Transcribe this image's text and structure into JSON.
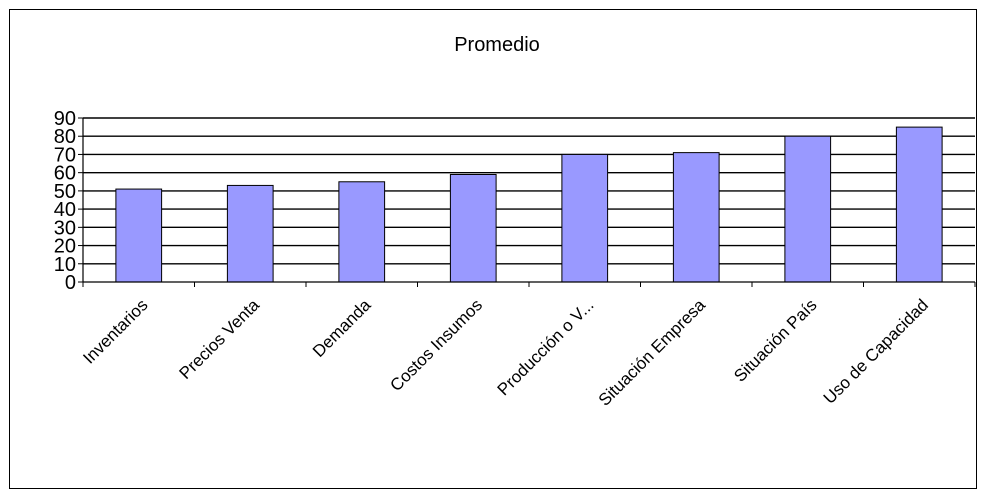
{
  "chart_data": {
    "type": "bar",
    "title": "Promedio",
    "xlabel": "",
    "ylabel": "",
    "categories": [
      "Inventarios",
      "Precios Venta",
      "Demanda",
      "Costos Insumos",
      "Producción o V...",
      "Situación Empresa",
      "Situación País",
      "Uso de Capacidad"
    ],
    "values": [
      51,
      53,
      55,
      59,
      70,
      71,
      80,
      85
    ],
    "yticks": [
      "0",
      "10",
      "20",
      "30",
      "40",
      "50",
      "60",
      "70",
      "80",
      "90"
    ],
    "ylim": [
      0,
      90
    ],
    "grid": true,
    "legend": "none",
    "colors": {
      "bar_fill": "#9999ff",
      "bar_stroke": "#000000",
      "grid": "#000000",
      "background": "#ffffff"
    }
  }
}
